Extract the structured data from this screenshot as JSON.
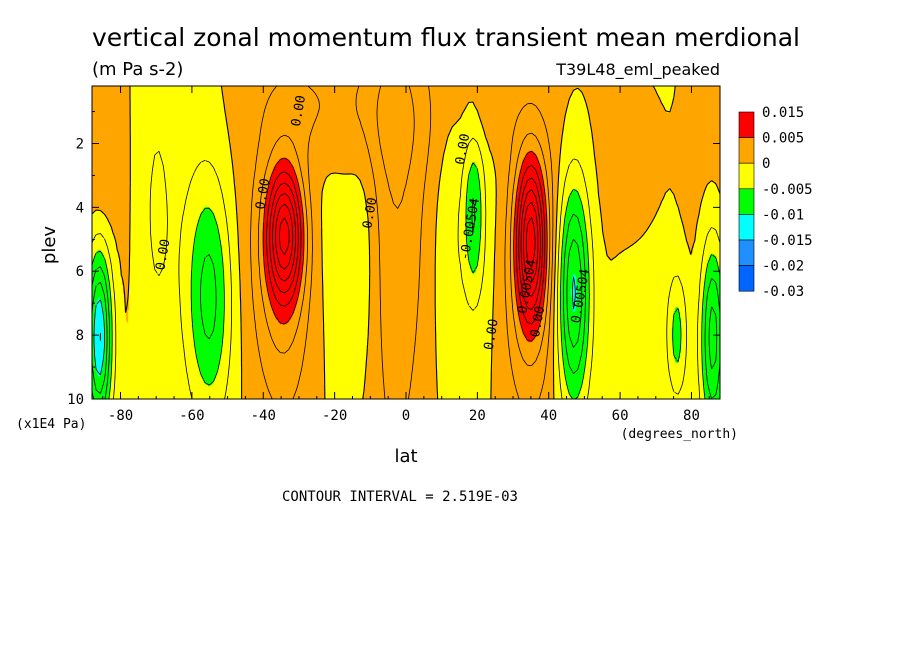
{
  "chart_data": {
    "type": "heatmap",
    "title": "vertical zonal momentum flux transient mean merdional",
    "units": "(m Pa s-2)",
    "dataset": "T39L48_eml_peaked",
    "xlabel": "lat",
    "x_units": "(degrees_north)",
    "ylabel": "plev",
    "y_units": "(x1E4 Pa)",
    "xlim": [
      -88,
      88
    ],
    "ylim": [
      10,
      0.2
    ],
    "x_ticks": [
      -80,
      -60,
      -40,
      -20,
      0,
      20,
      40,
      60,
      80
    ],
    "x_tick_labels": [
      "-80",
      "-60",
      "-40",
      "-20",
      "0",
      "20",
      "40",
      "60",
      "80"
    ],
    "y_ticks": [
      2,
      4,
      6,
      8,
      10
    ],
    "y_tick_labels": [
      "2",
      "4",
      "6",
      "8",
      "10"
    ],
    "contour_interval_text": "CONTOUR INTERVAL = 2.519E-03",
    "contour_labels": [
      {
        "text": "0.00",
        "lat": -29,
        "plev": 1.0
      },
      {
        "text": "0.00",
        "lat": -39,
        "plev": 3.6
      },
      {
        "text": "0.00",
        "lat": -67,
        "plev": 5.5
      },
      {
        "text": "0.00",
        "lat": -9,
        "plev": 4.2
      },
      {
        "text": "0.00",
        "lat": 17,
        "plev": 2.2
      },
      {
        "text": "-0.00504",
        "lat": 19,
        "plev": 4.7
      },
      {
        "text": "0.00",
        "lat": 25,
        "plev": 8.0
      },
      {
        "text": "0.00504",
        "lat": 35,
        "plev": 6.5
      },
      {
        "text": "0.00",
        "lat": 38,
        "plev": 7.6
      },
      {
        "text": "0.00504",
        "lat": 50,
        "plev": 6.8
      }
    ],
    "legend": {
      "placement": "right",
      "labels": [
        "0.015",
        "0.005",
        "0",
        "-0.005",
        "-0.01",
        "-0.015",
        "-0.02",
        "-0.03"
      ],
      "colors": [
        "#ff0000",
        "#ffa500",
        "#ffff00",
        "#00ff00",
        "#00ffff",
        "#1e90ff",
        "#0064ff"
      ]
    },
    "features": [
      {
        "lat": -34,
        "plev": 4.8,
        "value": 0.016,
        "sigma_lat": 3.5,
        "sigma_p": 1.4
      },
      {
        "lat": 35,
        "plev": 5.0,
        "value": 0.016,
        "sigma_lat": 2.8,
        "sigma_p": 1.7
      },
      {
        "lat": -34,
        "plev": 6.3,
        "value": 0.006,
        "sigma_lat": 5.5,
        "sigma_p": 3.0
      },
      {
        "lat": 34,
        "plev": 6.0,
        "value": 0.006,
        "sigma_lat": 5.0,
        "sigma_p": 3.2
      },
      {
        "lat": -3,
        "plev": 5.0,
        "value": 0.0035,
        "sigma_lat": 5.5,
        "sigma_p": 7.0
      },
      {
        "lat": -5,
        "plev": 1.0,
        "value": 0.003,
        "sigma_lat": 11.0,
        "sigma_p": 1.6
      },
      {
        "lat": -28,
        "plev": 0.8,
        "value": 0.0025,
        "sigma_lat": 9.0,
        "sigma_p": 1.2
      },
      {
        "lat": 23,
        "plev": 0.9,
        "value": 0.002,
        "sigma_lat": 5.0,
        "sigma_p": 1.0
      },
      {
        "lat": 64,
        "plev": 3.0,
        "value": 0.002,
        "sigma_lat": 6.0,
        "sigma_p": 2.0
      },
      {
        "lat": -85,
        "plev": 3.0,
        "value": 0.0016,
        "sigma_lat": 3.0,
        "sigma_p": 1.6
      },
      {
        "lat": -55,
        "plev": 6.8,
        "value": -0.0085,
        "sigma_lat": 4.5,
        "sigma_p": 2.7
      },
      {
        "lat": 47,
        "plev": 6.6,
        "value": -0.014,
        "sigma_lat": 3.2,
        "sigma_p": 2.5
      },
      {
        "lat": 19,
        "plev": 4.2,
        "value": -0.0068,
        "sigma_lat": 2.0,
        "sigma_p": 1.8
      },
      {
        "lat": -86,
        "plev": 8.0,
        "value": -0.016,
        "sigma_lat": 2.5,
        "sigma_p": 2.0
      },
      {
        "lat": 86,
        "plev": 8.0,
        "value": -0.012,
        "sigma_lat": 2.5,
        "sigma_p": 2.2
      },
      {
        "lat": 76,
        "plev": 8.0,
        "value": -0.006,
        "sigma_lat": 2.0,
        "sigma_p": 1.4
      },
      {
        "lat": -12,
        "plev": 5.5,
        "value": -0.002,
        "sigma_lat": 3.0,
        "sigma_p": 3.0
      },
      {
        "lat": 12,
        "plev": 5.5,
        "value": -0.002,
        "sigma_lat": 3.0,
        "sigma_p": 3.0
      },
      {
        "lat": -70,
        "plev": 4.0,
        "value": -0.002,
        "sigma_lat": 3.0,
        "sigma_p": 3.0
      }
    ]
  }
}
